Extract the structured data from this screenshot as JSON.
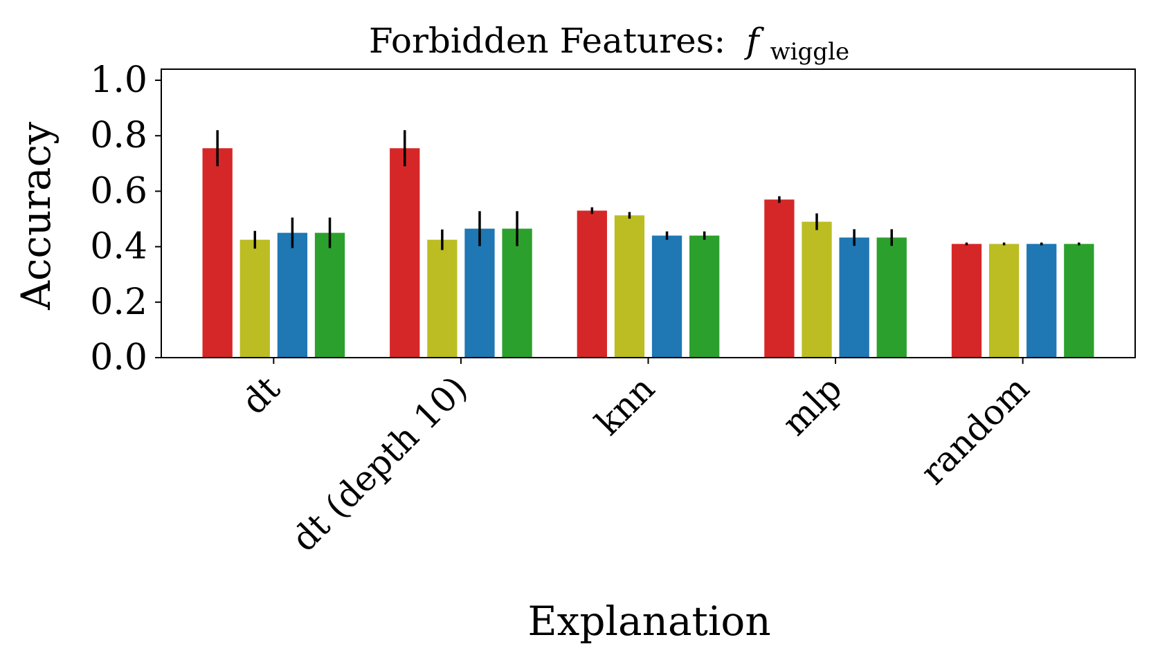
{
  "chart_data": {
    "type": "bar",
    "title_prefix": "Forbidden Features:",
    "title_symbol": "f",
    "title_subscript": "wiggle",
    "xlabel": "Explanation",
    "ylabel": "Accuracy",
    "ylim": [
      0.0,
      1.04
    ],
    "yticks": [
      "0.0",
      "0.2",
      "0.4",
      "0.6",
      "0.8",
      "1.0"
    ],
    "categories": [
      "dt",
      "dt (depth 10)",
      "knn",
      "mlp",
      "random"
    ],
    "grid": false,
    "legend": "none",
    "series": [
      {
        "color": "#d62728",
        "values": [
          0.755,
          0.755,
          0.53,
          0.57,
          0.41
        ],
        "errors": [
          0.065,
          0.065,
          0.012,
          0.012,
          0.005
        ]
      },
      {
        "color": "#bcbd22",
        "values": [
          0.425,
          0.425,
          0.513,
          0.49,
          0.41
        ],
        "errors": [
          0.032,
          0.037,
          0.012,
          0.03,
          0.005
        ]
      },
      {
        "color": "#1f77b4",
        "values": [
          0.45,
          0.465,
          0.44,
          0.433,
          0.41
        ],
        "errors": [
          0.055,
          0.063,
          0.015,
          0.03,
          0.005
        ]
      },
      {
        "color": "#2ca02c",
        "values": [
          0.45,
          0.465,
          0.44,
          0.433,
          0.41
        ],
        "errors": [
          0.055,
          0.063,
          0.015,
          0.03,
          0.005
        ]
      }
    ]
  }
}
